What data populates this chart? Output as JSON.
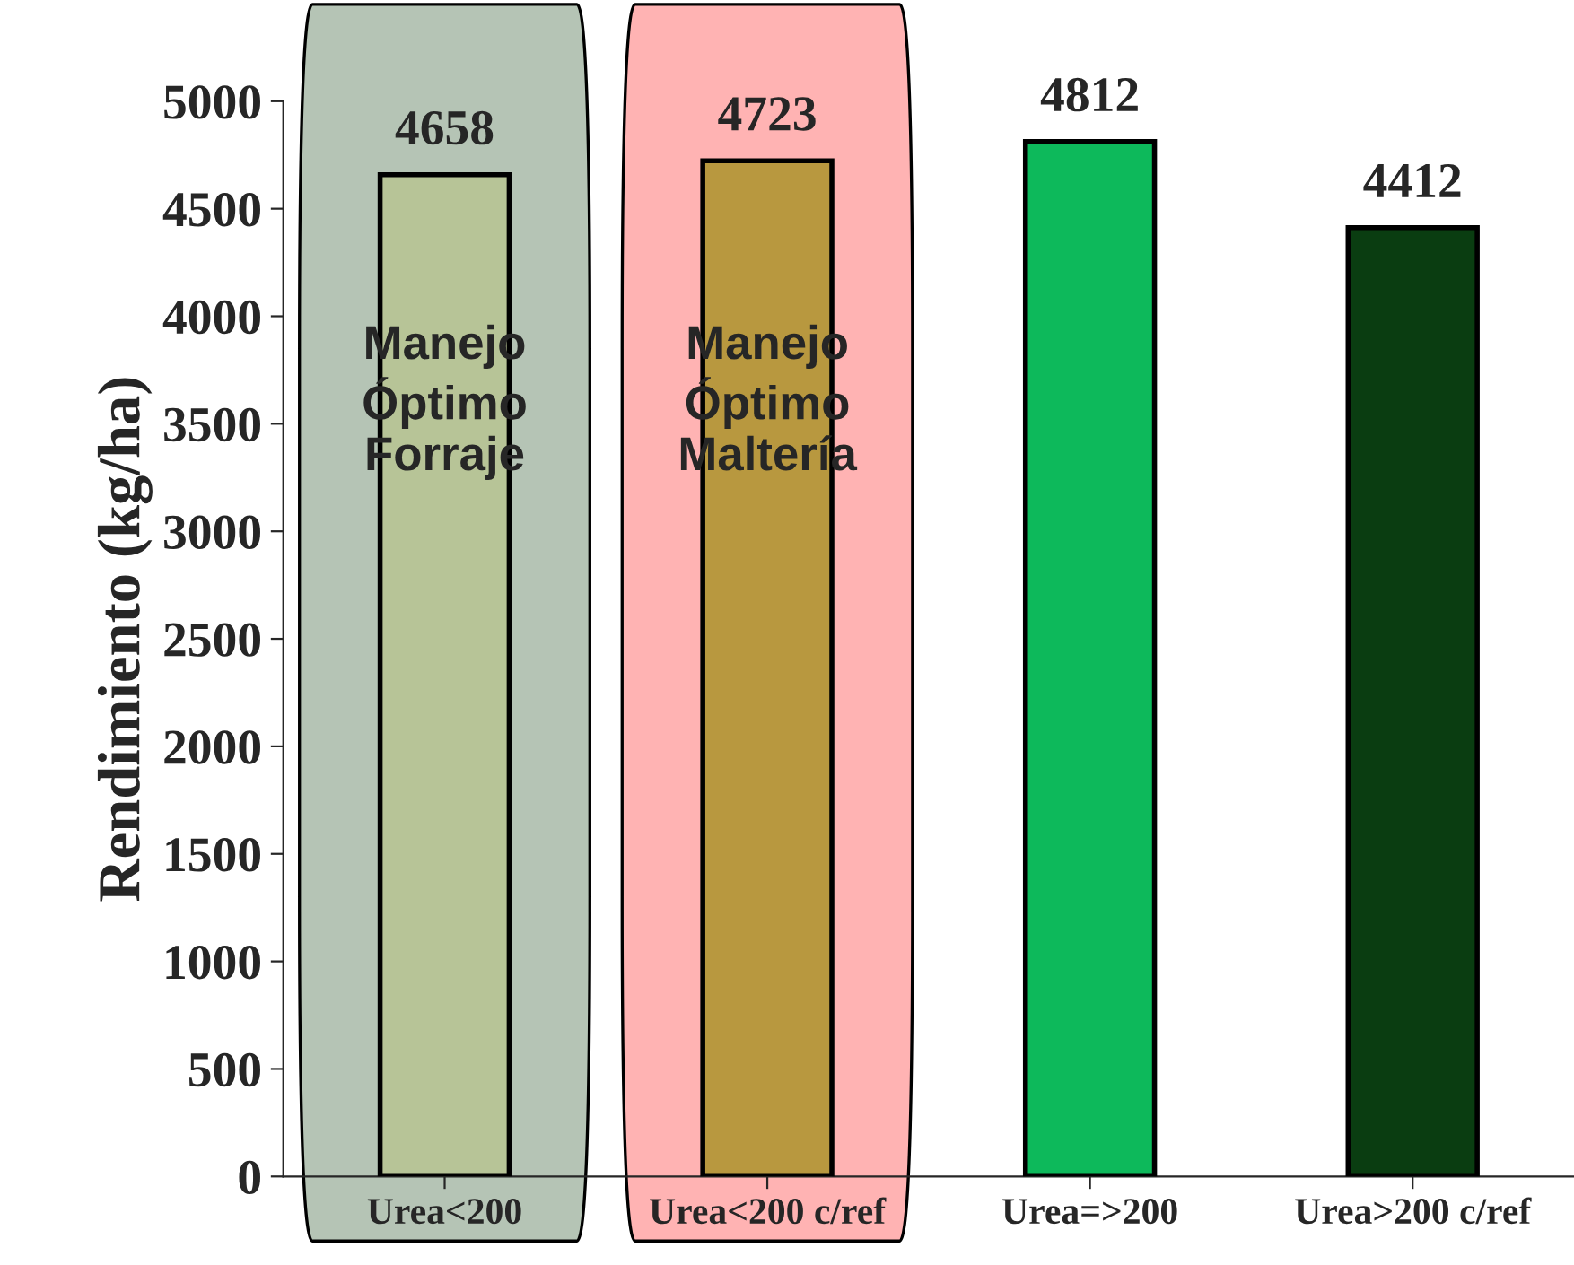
{
  "chart_data": {
    "type": "bar",
    "ylabel": "Rendimiento (kg/ha)",
    "categories": [
      "Urea<200",
      "Urea<200 c/ref",
      "Urea=>200",
      "Urea>200 c/ref"
    ],
    "values": [
      4658,
      4723,
      4812,
      4412
    ],
    "colors": [
      "#b7c497",
      "#b8983f",
      "#0db95b",
      "#0a3d11"
    ],
    "data_labels": true,
    "ylim": [
      0,
      5000
    ],
    "yticks": [
      0,
      500,
      1000,
      1500,
      2000,
      2500,
      3000,
      3500,
      4000,
      4500,
      5000
    ],
    "grid": false,
    "legend": false,
    "bands": [
      {
        "axis": "x",
        "from": "Urea<200",
        "to": "Urea<200",
        "label": "Manejo\nÓptimo\nForraje",
        "color": "#b5c4b5"
      },
      {
        "axis": "x",
        "from": "Urea<200 c/ref",
        "to": "Urea<200 c/ref",
        "label": "Manejo\nÓptimo\nMaltería",
        "color": "#ffb3b3"
      }
    ]
  }
}
